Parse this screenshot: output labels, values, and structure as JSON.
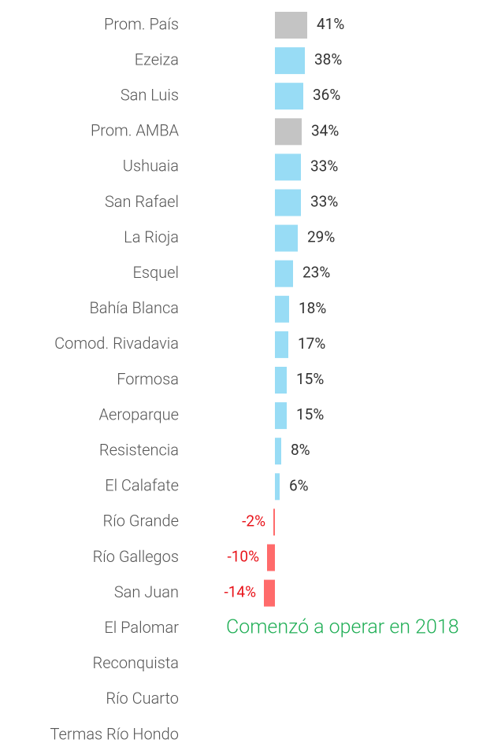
{
  "chart_data": {
    "type": "bar",
    "orientation": "horizontal",
    "categories": [
      "Prom. País",
      "Ezeiza",
      "San Luis",
      "Prom. AMBA",
      "Ushuaia",
      "San Rafael",
      "La Rioja",
      "Esquel",
      "Bahía Blanca",
      "Comod. Rivadavia",
      "Formosa",
      "Aeroparque",
      "Resistencia",
      "El Calafate",
      "Río Grande",
      "Río Gallegos",
      "San Juan",
      "El Palomar",
      "Reconquista",
      "Río Cuarto",
      "Termas Río Hondo"
    ],
    "values": [
      41,
      38,
      36,
      34,
      33,
      33,
      29,
      23,
      18,
      17,
      15,
      15,
      8,
      6,
      -2,
      -10,
      -14,
      null,
      null,
      null,
      null
    ],
    "value_labels": [
      "41%",
      "38%",
      "36%",
      "34%",
      "33%",
      "33%",
      "29%",
      "23%",
      "18%",
      "17%",
      "15%",
      "15%",
      "8%",
      "6%",
      "-2%",
      "-10%",
      "-14%",
      null,
      null,
      null,
      null
    ],
    "colors": [
      "#c4c4c4",
      "#98dcf5",
      "#98dcf5",
      "#c4c4c4",
      "#98dcf5",
      "#98dcf5",
      "#98dcf5",
      "#98dcf5",
      "#98dcf5",
      "#98dcf5",
      "#98dcf5",
      "#98dcf5",
      "#98dcf5",
      "#98dcf5",
      "#ff6b6b",
      "#ff6b6b",
      "#ff6b6b",
      null,
      null,
      null,
      null
    ],
    "annotation": "Comenzó a operar en 2018"
  }
}
